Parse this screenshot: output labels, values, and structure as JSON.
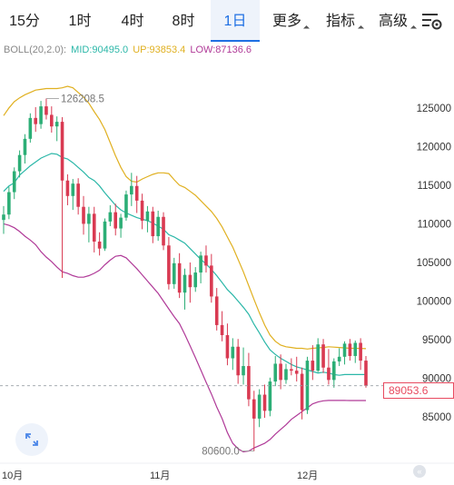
{
  "tabs": [
    {
      "label": "15分",
      "active": false
    },
    {
      "label": "1时",
      "active": false
    },
    {
      "label": "4时",
      "active": false
    },
    {
      "label": "8时",
      "active": false
    },
    {
      "label": "1日",
      "active": true
    },
    {
      "label": "更多",
      "active": false,
      "dropdown": true
    },
    {
      "label": "指标",
      "active": false,
      "dropdown": true
    },
    {
      "label": "高级",
      "active": false,
      "dropdown": true
    }
  ],
  "settings_icon": "chart-settings-icon",
  "indicator": {
    "name": "BOLL(20,2.0):",
    "mid": "MID:90495.0",
    "up": "UP:93853.4",
    "low": "LOW:87136.6",
    "colors": {
      "name": "#888888",
      "mid": "#2bb7a8",
      "up": "#e0b020",
      "low": "#b03a98"
    }
  },
  "chart_data": {
    "type": "candlestick",
    "y_ticks": [
      "125000",
      "120000",
      "115000",
      "110000",
      "105000",
      "100000",
      "95000",
      "90000",
      "85000"
    ],
    "y_range": [
      79500,
      128500
    ],
    "x_labels": [
      "10月",
      "11月",
      "12月"
    ],
    "last_price": "89053.6",
    "max_label": "126208.5",
    "min_label": "80600.0",
    "colors": {
      "up": "#2cae76",
      "down": "#d93a52",
      "mid": "#2bb7a8",
      "upper": "#e0b020",
      "lower": "#b03a98",
      "last_price": "#e84a5f"
    },
    "candles": [
      [
        110500,
        112300,
        108700,
        111200
      ],
      [
        111200,
        114800,
        110600,
        114100
      ],
      [
        114100,
        117300,
        113200,
        116800
      ],
      [
        116800,
        119500,
        116000,
        118900
      ],
      [
        118900,
        121600,
        117800,
        121000
      ],
      [
        121000,
        124300,
        120500,
        123700
      ],
      [
        123700,
        125100,
        121900,
        122900
      ],
      [
        122900,
        125900,
        122300,
        125200
      ],
      [
        125200,
        126208,
        123500,
        124100
      ],
      [
        124100,
        125200,
        121800,
        122600
      ],
      [
        122600,
        123900,
        120700,
        123200
      ],
      [
        123200,
        123800,
        103000,
        115600
      ],
      [
        115600,
        116400,
        112400,
        113600
      ],
      [
        113600,
        115800,
        111800,
        115200
      ],
      [
        115200,
        115900,
        111200,
        112200
      ],
      [
        112200,
        113600,
        108600,
        110000
      ],
      [
        110000,
        112200,
        107600,
        111300
      ],
      [
        111300,
        112200,
        106300,
        107700
      ],
      [
        107700,
        108900,
        105900,
        106800
      ],
      [
        106800,
        110700,
        106500,
        110300
      ],
      [
        110300,
        112400,
        109700,
        111500
      ],
      [
        111500,
        112600,
        108500,
        109400
      ],
      [
        109400,
        111300,
        108200,
        110800
      ],
      [
        110800,
        114300,
        110400,
        113800
      ],
      [
        113800,
        116600,
        112300,
        114900
      ],
      [
        114900,
        116200,
        111400,
        113000
      ],
      [
        113000,
        113900,
        109300,
        110400
      ],
      [
        110400,
        112300,
        108900,
        111600
      ],
      [
        111600,
        112200,
        107500,
        108400
      ],
      [
        108400,
        111700,
        107800,
        110900
      ],
      [
        110900,
        111500,
        106600,
        107200
      ],
      [
        107200,
        108300,
        101500,
        102200
      ],
      [
        102200,
        105600,
        101600,
        104900
      ],
      [
        104900,
        106200,
        100400,
        101100
      ],
      [
        101100,
        104200,
        98900,
        103400
      ],
      [
        103400,
        105000,
        99800,
        101800
      ],
      [
        101800,
        104400,
        101200,
        103700
      ],
      [
        103700,
        106400,
        102300,
        105900
      ],
      [
        105900,
        107200,
        103700,
        104600
      ],
      [
        104600,
        106100,
        99800,
        100600
      ],
      [
        100600,
        101700,
        96200,
        96900
      ],
      [
        96900,
        98700,
        94800,
        95600
      ],
      [
        95600,
        97100,
        91700,
        92600
      ],
      [
        92600,
        95200,
        91100,
        94100
      ],
      [
        94100,
        95100,
        89300,
        90400
      ],
      [
        90400,
        94000,
        89200,
        91600
      ],
      [
        91600,
        93300,
        86400,
        87300
      ],
      [
        87300,
        88400,
        80600,
        84800
      ],
      [
        84800,
        88600,
        83700,
        87900
      ],
      [
        87900,
        89200,
        84900,
        85800
      ],
      [
        85800,
        90100,
        85100,
        89600
      ],
      [
        89600,
        92900,
        89000,
        91900
      ],
      [
        91900,
        93100,
        88600,
        89800
      ],
      [
        89800,
        91900,
        89300,
        91200
      ],
      [
        91200,
        92600,
        90400,
        91000
      ],
      [
        91000,
        92800,
        89600,
        90600
      ],
      [
        90600,
        91400,
        84700,
        85900
      ],
      [
        85900,
        92800,
        85400,
        92300
      ],
      [
        92300,
        94300,
        89800,
        91000
      ],
      [
        91000,
        95200,
        90800,
        94400
      ],
      [
        94400,
        95100,
        90700,
        91400
      ],
      [
        91400,
        93800,
        89200,
        89800
      ],
      [
        89800,
        92600,
        88800,
        92200
      ],
      [
        92200,
        93900,
        91600,
        92800
      ],
      [
        92800,
        94800,
        91800,
        94500
      ],
      [
        94500,
        95100,
        92300,
        92900
      ],
      [
        92900,
        94900,
        92000,
        94600
      ],
      [
        94600,
        95200,
        91100,
        92300
      ],
      [
        92300,
        92900,
        88800,
        89053.6
      ]
    ],
    "mid": [
      114200,
      114900,
      115300,
      116300,
      116900,
      117500,
      118000,
      118500,
      118800,
      119100,
      119000,
      118600,
      118400,
      117900,
      117300,
      116700,
      116000,
      115600,
      114900,
      114000,
      113200,
      112400,
      111800,
      111400,
      111100,
      110800,
      110600,
      110400,
      110100,
      109700,
      109300,
      108600,
      108300,
      107900,
      107500,
      106800,
      106100,
      105400,
      104800,
      104100,
      103300,
      102400,
      101500,
      100800,
      100000,
      99200,
      98300,
      97000,
      95900,
      94700,
      93700,
      93100,
      92600,
      92200,
      91800,
      91500,
      91300,
      91100,
      90900,
      90700,
      90800,
      90700,
      90500,
      90400,
      90500,
      90500,
      90500,
      90500,
      90495
    ],
    "upper": [
      124000,
      125000,
      125800,
      126300,
      126700,
      127000,
      127300,
      127400,
      127500,
      127500,
      127500,
      127600,
      127800,
      127600,
      127000,
      126400,
      125600,
      124500,
      123500,
      122200,
      120500,
      118800,
      117300,
      116100,
      115500,
      115400,
      115800,
      116100,
      116400,
      116600,
      116600,
      116500,
      115700,
      115000,
      114700,
      114200,
      113700,
      113000,
      112300,
      111600,
      110700,
      109600,
      108300,
      107000,
      105400,
      103800,
      102000,
      100200,
      98500,
      96900,
      95600,
      94800,
      94300,
      94100,
      94000,
      93900,
      93900,
      93800,
      93900,
      93950,
      94000,
      94100,
      94050,
      94000,
      93950,
      93900,
      93900,
      93880,
      93853
    ],
    "lower": [
      110000,
      109800,
      109500,
      109000,
      108400,
      107900,
      107300,
      106400,
      105700,
      105100,
      104400,
      103800,
      103600,
      103300,
      103100,
      103100,
      103300,
      103600,
      104000,
      104700,
      105300,
      105800,
      105900,
      105600,
      104900,
      104200,
      103400,
      102600,
      101800,
      101000,
      100000,
      99000,
      98000,
      97100,
      95700,
      94200,
      92700,
      91100,
      89500,
      88000,
      86300,
      84800,
      83000,
      81600,
      80900,
      80500,
      80600,
      81000,
      81300,
      81600,
      82100,
      82800,
      83400,
      84000,
      84700,
      85200,
      85700,
      86200,
      86700,
      86950,
      87100,
      87150,
      87150,
      87150,
      87150,
      87140,
      87140,
      87138,
      87136
    ]
  }
}
